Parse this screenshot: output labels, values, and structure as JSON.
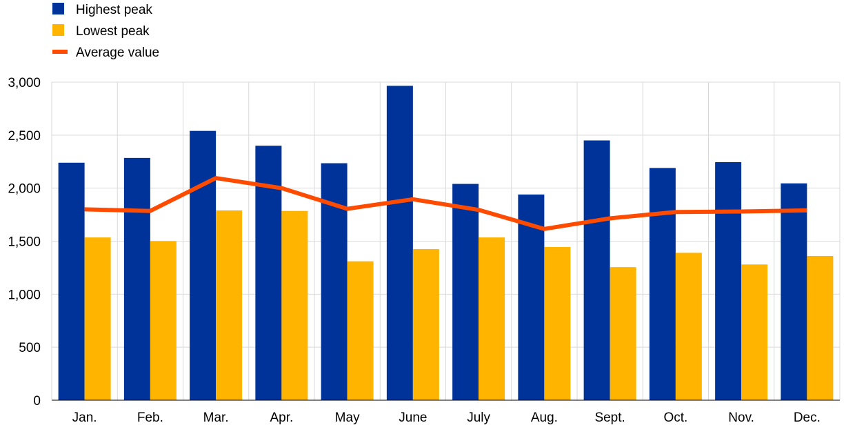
{
  "chart_data": {
    "type": "bar",
    "categories": [
      "Jan.",
      "Feb.",
      "Mar.",
      "Apr.",
      "May",
      "June",
      "July",
      "Aug.",
      "Sept.",
      "Oct.",
      "Nov.",
      "Dec."
    ],
    "series": [
      {
        "name": "Highest peak",
        "type": "bar",
        "color": "#003399",
        "values": [
          2240,
          2285,
          2540,
          2400,
          2235,
          2965,
          2040,
          1940,
          2450,
          2190,
          2245,
          2045
        ]
      },
      {
        "name": "Lowest peak",
        "type": "bar",
        "color": "#FFB400",
        "values": [
          1535,
          1500,
          1790,
          1785,
          1310,
          1425,
          1535,
          1445,
          1255,
          1390,
          1280,
          1360
        ]
      },
      {
        "name": "Average value",
        "type": "line",
        "color": "#FF4B00",
        "values": [
          1800,
          1785,
          2095,
          2000,
          1805,
          1895,
          1795,
          1615,
          1715,
          1775,
          1780,
          1790
        ]
      }
    ],
    "ylim": [
      0,
      3000
    ],
    "yticks": [
      0,
      500,
      1000,
      1500,
      2000,
      2500,
      3000
    ],
    "ytick_labels": [
      "0",
      "500",
      "1,000",
      "1,500",
      "2,000",
      "2,500",
      "3,000"
    ],
    "grid": true,
    "legend_position": "top-left"
  }
}
